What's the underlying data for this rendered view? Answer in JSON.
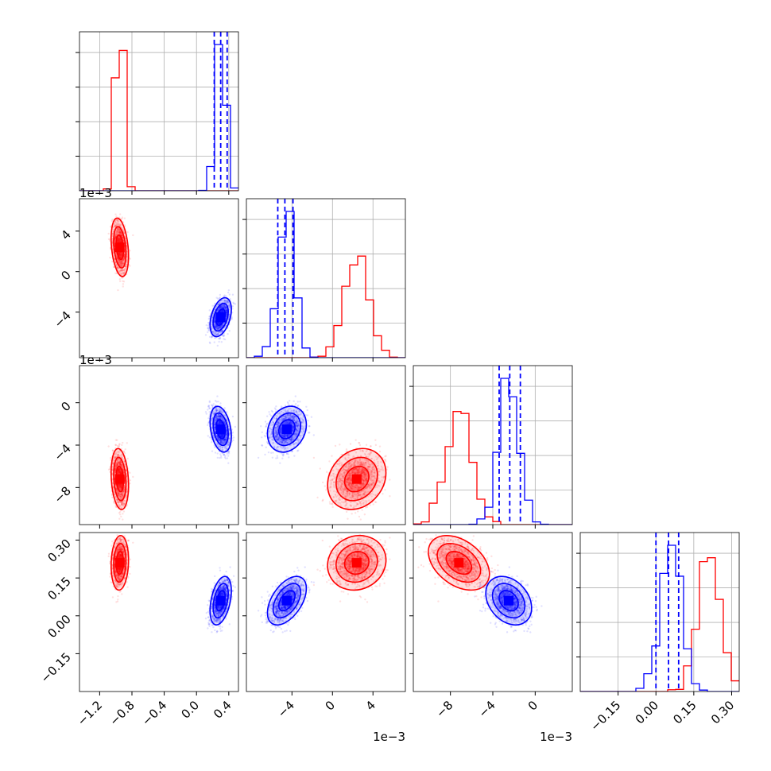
{
  "chart_data": {
    "type": "corner",
    "dims": 4,
    "series": [
      {
        "color": "#ff0000",
        "center": [
          -0.95,
          0.0024,
          -0.0072,
          0.21
        ],
        "sd": [
          0.045,
          0.0012,
          0.0012,
          0.045
        ],
        "corr": [
          [
            1,
            -0.3,
            -0.2,
            0.1
          ],
          [
            -0.3,
            1,
            0.2,
            0.1
          ],
          [
            -0.2,
            0.2,
            1,
            -0.4
          ],
          [
            0.1,
            0.1,
            -0.4,
            1
          ]
        ]
      },
      {
        "color": "#0000ff",
        "center": [
          0.3,
          -0.0045,
          -0.0025,
          0.06
        ],
        "sd": [
          0.055,
          0.0008,
          0.0009,
          0.04
        ],
        "corr": [
          [
            1,
            0.4,
            -0.3,
            0.4
          ],
          [
            0.4,
            1,
            0.2,
            0.5
          ],
          [
            -0.3,
            0.2,
            1,
            -0.3
          ],
          [
            0.4,
            0.5,
            -0.3,
            1
          ]
        ]
      }
    ],
    "quantile_lines": [
      [
        0.22,
        0.3,
        0.38
      ],
      [
        -0.0054,
        -0.0047,
        -0.0039
      ],
      [
        -0.0034,
        -0.0024,
        -0.0014
      ],
      [
        0.0,
        0.05,
        0.09
      ]
    ],
    "quantile_color": "#0000ff",
    "ranges": [
      [
        -1.45,
        0.52
      ],
      [
        -0.0085,
        0.0072
      ],
      [
        -0.0115,
        0.0035
      ],
      [
        -0.3,
        0.33
      ]
    ],
    "ticks": [
      {
        "values": [
          -1.2,
          -0.8,
          -0.4,
          0.0,
          0.4
        ],
        "labels": [
          "−1.2",
          "−0.8",
          "−0.4",
          "0.0",
          "0.4"
        ]
      },
      {
        "values": [
          -0.004,
          0.0,
          0.004
        ],
        "labels": [
          "−4",
          "0",
          "4"
        ]
      },
      {
        "values": [
          -0.008,
          -0.004,
          0.0
        ],
        "labels": [
          "−8",
          "−4",
          "0"
        ]
      },
      {
        "values": [
          -0.15,
          0.0,
          0.15,
          0.3
        ],
        "labels": [
          "−0.15",
          "0.00",
          "0.15",
          "0.30"
        ]
      }
    ],
    "offset_texts": [
      "",
      "1e−3",
      "1e−3",
      ""
    ],
    "grid": true
  }
}
